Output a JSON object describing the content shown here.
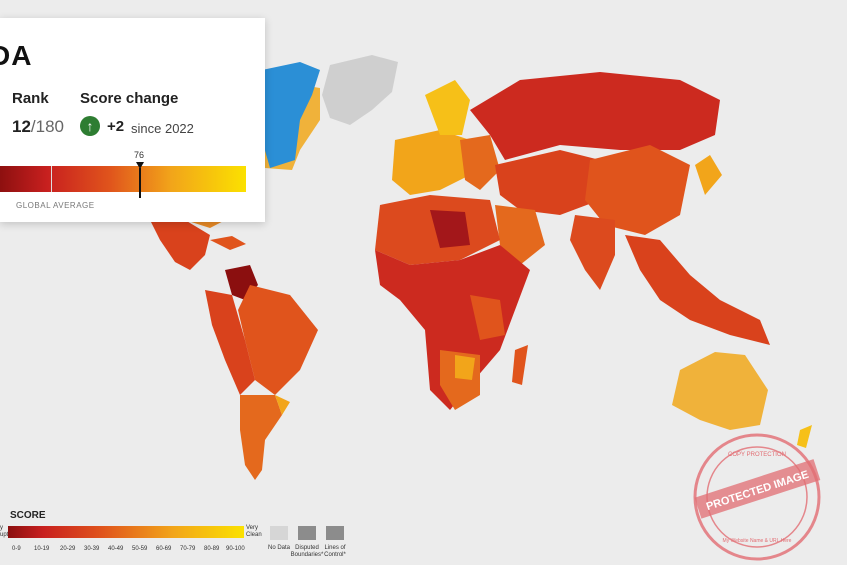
{
  "card": {
    "country_fragment": "DA",
    "rank_label": "Rank",
    "rank_value": "12",
    "rank_total": "/180",
    "score_change_label": "Score change",
    "score_change_value": "+2",
    "score_change_direction": "up",
    "since_text": "since 2022",
    "score_marker": "76",
    "global_average_label": "GLOBAL AVERAGE",
    "colors": {
      "change_up": "#2e7d32"
    }
  },
  "legend": {
    "title": "SCORE",
    "left_caption_line1": "y",
    "left_caption_line2": "upt",
    "right_caption_line1": "Very",
    "right_caption_line2": "Clean",
    "ranges": [
      "0-9",
      "10-19",
      "20-29",
      "30-39",
      "40-49",
      "50-59",
      "60-69",
      "70-79",
      "80-89",
      "90-100"
    ],
    "no_data": "No Data",
    "disputed": "Disputed Boundaries*",
    "lines_of_control": "Lines of Control*",
    "colors": [
      "#8b0f0f",
      "#b5191a",
      "#cc2a1f",
      "#dc4a1e",
      "#e4691d",
      "#ec8a1c",
      "#f2a51a",
      "#f6c018",
      "#f9d510",
      "#fbe100"
    ]
  },
  "watermark": {
    "line1": "PROTECTED IMAGE",
    "line2": "COPY PROTECTION",
    "line3": "My Website Name & URL Here"
  }
}
